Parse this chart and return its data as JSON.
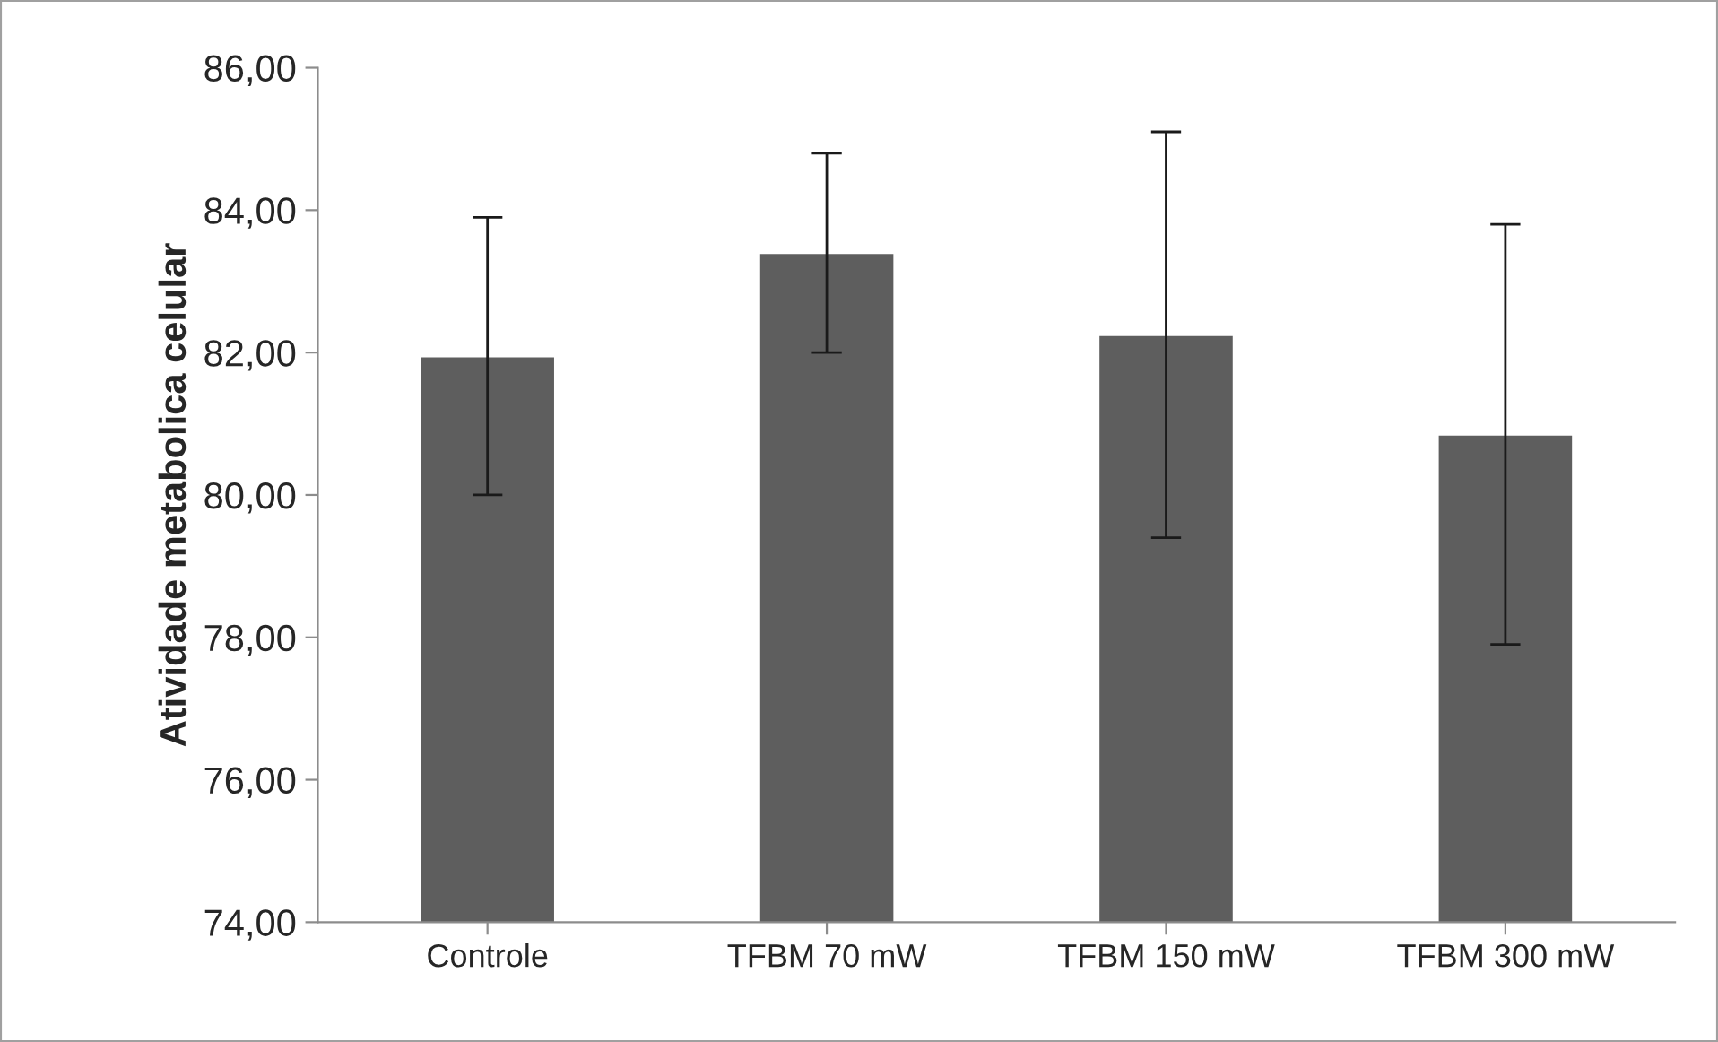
{
  "chart_data": {
    "type": "bar",
    "ylabel": "Atividade metabolica celular",
    "categories": [
      "Controle",
      "TFBM 70 mW",
      "TFBM 150 mW",
      "TFBM 300 mW"
    ],
    "values": [
      81.95,
      83.4,
      82.25,
      80.85
    ],
    "errors": [
      1.95,
      1.4,
      2.85,
      2.95
    ],
    "color": "#5e5e5e",
    "ylim": [
      74,
      86
    ],
    "yticks": [
      {
        "value": 74,
        "label": "74,00"
      },
      {
        "value": 76,
        "label": "76,00"
      },
      {
        "value": 78,
        "label": "78,00"
      },
      {
        "value": 80,
        "label": "80,00"
      },
      {
        "value": 82,
        "label": "82,00"
      },
      {
        "value": 84,
        "label": "84,00"
      },
      {
        "value": 86,
        "label": "86,00"
      }
    ],
    "grid": false
  }
}
